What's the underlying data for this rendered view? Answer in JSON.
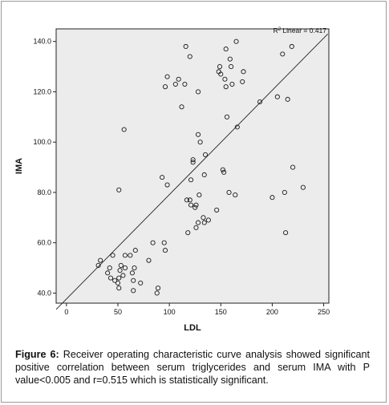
{
  "chart_data": {
    "type": "scatter",
    "xlabel": "LDL",
    "ylabel": "IMA",
    "xlim": [
      -10,
      255
    ],
    "ylim": [
      36,
      145
    ],
    "xticks": [
      0,
      50,
      100,
      150,
      200,
      250
    ],
    "yticks": [
      40.0,
      60.0,
      80.0,
      100.0,
      120.0,
      140.0
    ],
    "ytick_labels": [
      "40.0",
      "60.0",
      "80.0",
      "100.0",
      "120.0",
      "140.0"
    ],
    "grid": false,
    "plot_background": "#ececec",
    "marker_color": "#1a1a1a",
    "fit_line": {
      "label_prefix": "R",
      "label_sup": "2",
      "label_suffix": " Linear = 0.417",
      "x": [
        -10,
        254
      ],
      "y": [
        33.5,
        143
      ]
    },
    "points": [
      [
        31,
        51
      ],
      [
        33,
        53
      ],
      [
        40,
        48
      ],
      [
        42,
        50
      ],
      [
        43,
        46
      ],
      [
        45,
        55
      ],
      [
        47,
        45
      ],
      [
        50,
        44
      ],
      [
        51,
        42
      ],
      [
        51,
        46
      ],
      [
        52,
        49
      ],
      [
        53,
        51
      ],
      [
        55,
        47
      ],
      [
        57,
        50
      ],
      [
        57,
        55
      ],
      [
        62,
        55
      ],
      [
        64,
        48
      ],
      [
        65,
        45
      ],
      [
        65,
        41
      ],
      [
        66,
        50
      ],
      [
        67,
        57
      ],
      [
        72,
        44
      ],
      [
        80,
        53
      ],
      [
        84,
        60
      ],
      [
        88,
        40
      ],
      [
        89,
        42
      ],
      [
        95,
        60
      ],
      [
        96,
        57
      ],
      [
        51,
        81
      ],
      [
        56,
        105
      ],
      [
        93,
        86
      ],
      [
        98,
        83
      ],
      [
        98,
        126
      ],
      [
        96,
        122
      ],
      [
        106,
        123
      ],
      [
        109,
        125
      ],
      [
        112,
        114
      ],
      [
        115,
        123
      ],
      [
        116,
        138
      ],
      [
        120,
        134
      ],
      [
        128,
        120
      ],
      [
        117,
        77
      ],
      [
        118,
        64
      ],
      [
        120,
        77
      ],
      [
        121,
        75
      ],
      [
        121,
        85
      ],
      [
        123,
        92
      ],
      [
        123,
        93
      ],
      [
        125,
        74
      ],
      [
        126,
        75
      ],
      [
        126,
        66
      ],
      [
        128,
        68
      ],
      [
        128,
        103
      ],
      [
        129,
        79
      ],
      [
        130,
        100
      ],
      [
        133,
        70
      ],
      [
        134,
        68
      ],
      [
        134,
        87
      ],
      [
        135,
        95
      ],
      [
        138,
        69
      ],
      [
        146,
        73
      ],
      [
        148,
        128
      ],
      [
        149,
        130
      ],
      [
        150,
        127
      ],
      [
        152,
        89
      ],
      [
        153,
        88
      ],
      [
        154,
        125
      ],
      [
        155,
        137
      ],
      [
        155,
        122
      ],
      [
        156,
        110
      ],
      [
        158,
        80
      ],
      [
        159,
        133
      ],
      [
        160,
        130
      ],
      [
        161,
        123
      ],
      [
        164,
        79
      ],
      [
        165,
        140
      ],
      [
        166,
        106
      ],
      [
        171,
        124
      ],
      [
        172,
        128
      ],
      [
        188,
        116
      ],
      [
        200,
        78
      ],
      [
        205,
        118
      ],
      [
        210,
        135
      ],
      [
        212,
        80
      ],
      [
        213,
        64
      ],
      [
        215,
        117
      ],
      [
        219,
        138
      ],
      [
        220,
        90
      ],
      [
        230,
        82
      ]
    ]
  },
  "caption": {
    "label": "Figure 6:",
    "text": " Receiver operating characteristic curve analysis showed significant positive correlation between serum triglycerides and serum IMA with P value<0.005 and r=0.515 which is statistically significant."
  }
}
